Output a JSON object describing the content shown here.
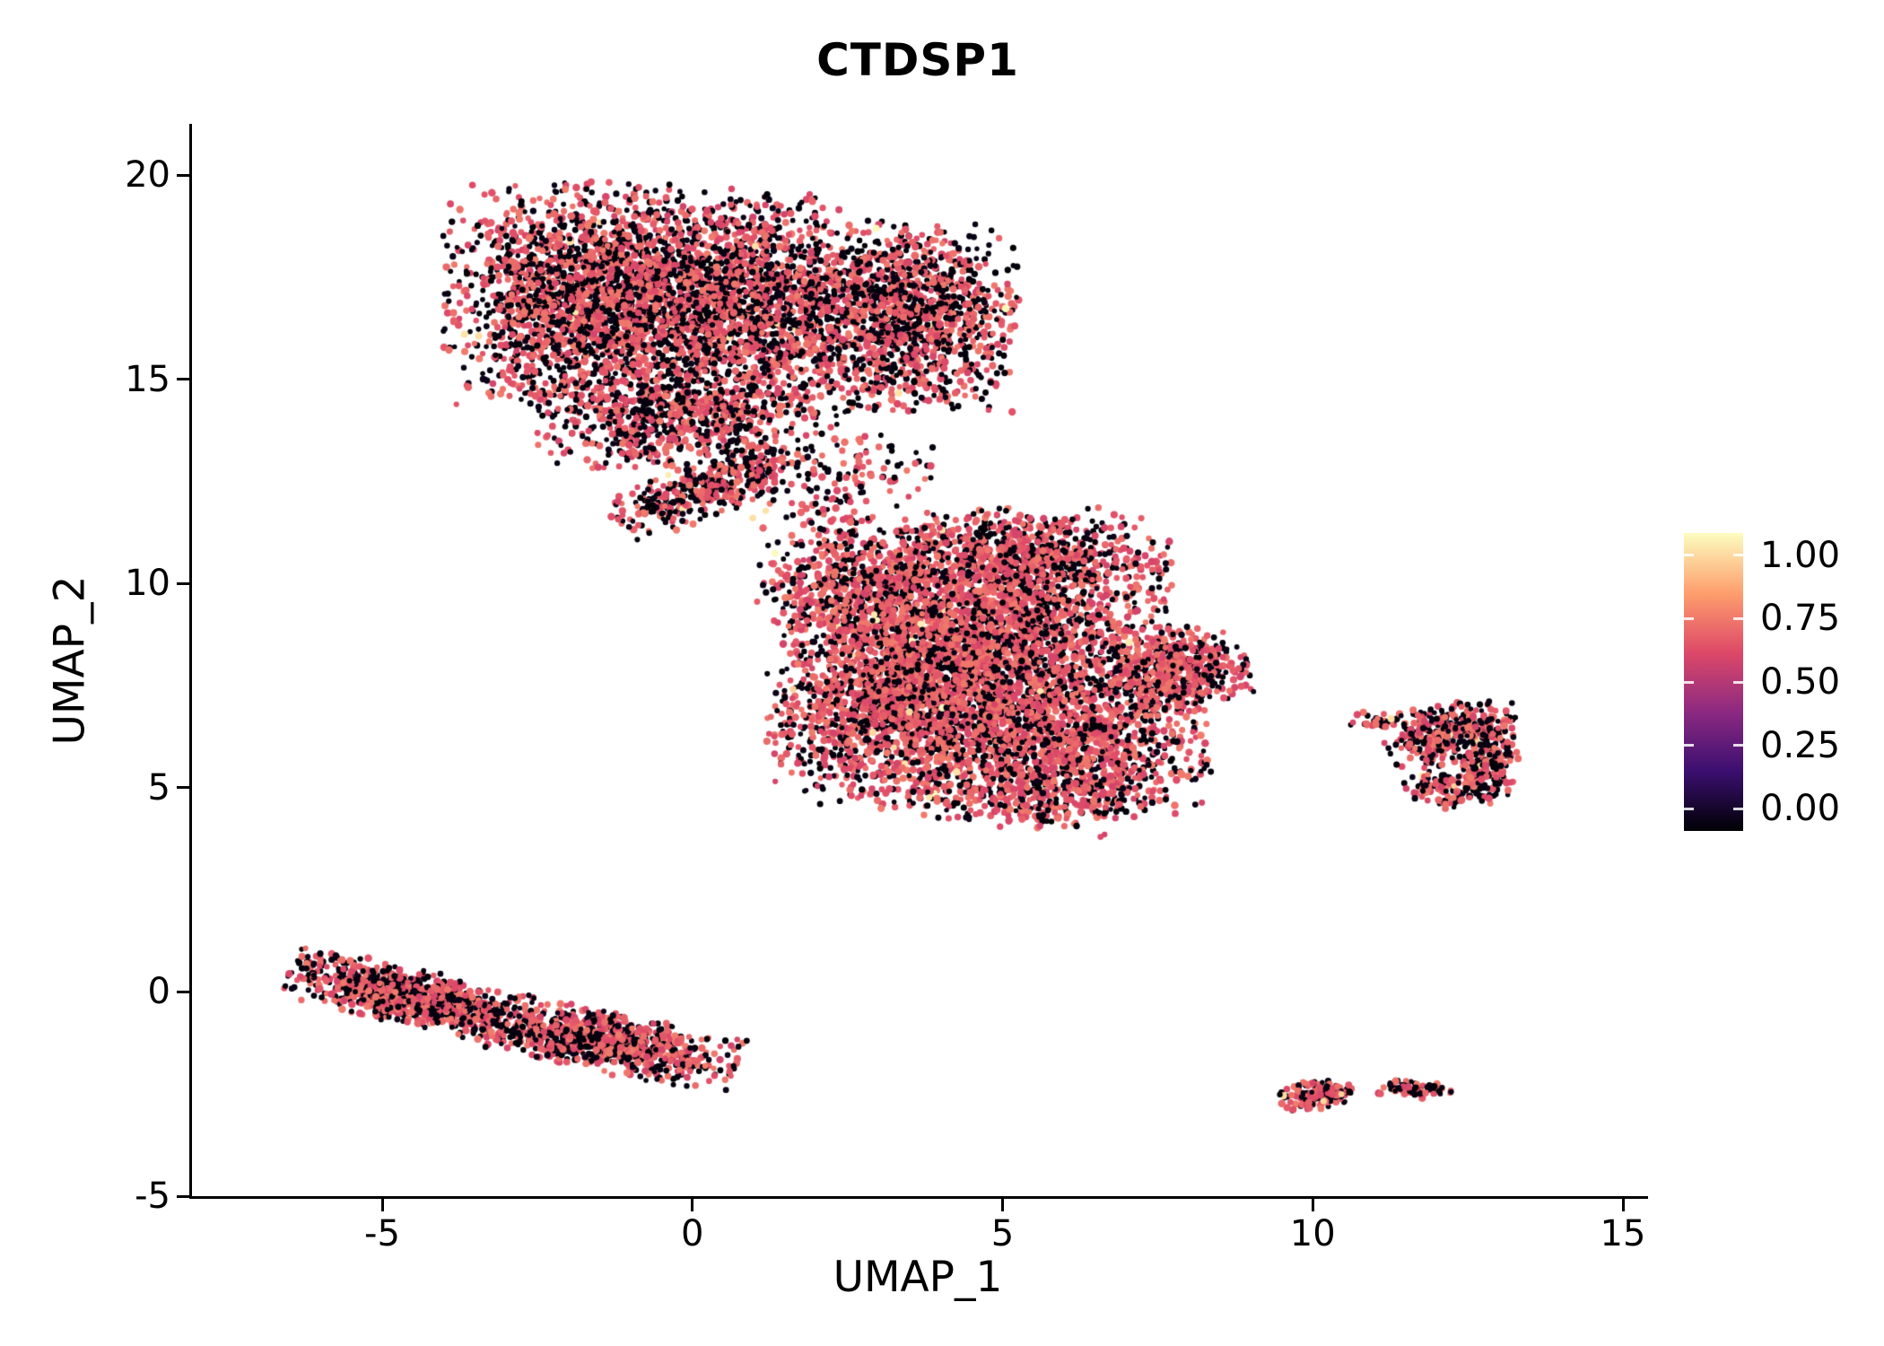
{
  "title": "CTDSP1",
  "axes": {
    "x": {
      "label": "UMAP_1",
      "ticks": [
        -5,
        0,
        5,
        10,
        15
      ],
      "tick_labels": [
        "-5",
        "0",
        "5",
        "10",
        "15"
      ]
    },
    "y": {
      "label": "UMAP_2",
      "ticks": [
        -5,
        0,
        5,
        10,
        15,
        20
      ],
      "tick_labels": [
        "-5",
        "0",
        "5",
        "10",
        "15",
        "20"
      ]
    }
  },
  "colorbar": {
    "tick_labels": [
      "1.00",
      "0.75",
      "0.50",
      "0.25",
      "0.00"
    ],
    "tick_values": [
      1.0,
      0.75,
      0.5,
      0.25,
      0.0
    ]
  },
  "colors": {
    "background": "#FFFFFF",
    "axis": "#000000",
    "text": "#000000",
    "colormap_name": "magma",
    "colormap_stops": [
      {
        "t": 0.0,
        "c": "#000004"
      },
      {
        "t": 0.2,
        "c": "#3B0F70"
      },
      {
        "t": 0.4,
        "c": "#8C2981"
      },
      {
        "t": 0.6,
        "c": "#DE4968"
      },
      {
        "t": 0.8,
        "c": "#FE9F6D"
      },
      {
        "t": 1.0,
        "c": "#FCFDBF"
      }
    ]
  },
  "chart_data": {
    "type": "scatter",
    "title": "CTDSP1",
    "xlabel": "UMAP_1",
    "ylabel": "UMAP_2",
    "xlim": [
      -8.1,
      15.4
    ],
    "ylim": [
      -5,
      21.2
    ],
    "grid": false,
    "legend_position": "right",
    "color_scale": {
      "limits": [
        0,
        1
      ],
      "palette": "magma",
      "description": "CTDSP1 expression per cell: 0 = black, ~0.6 = pink-red (most expressing cells), ~1 = pale yellow (rare)"
    },
    "point_value_mix": {
      "zero_black": "roughly 40-50% of cells, value 0-0.04",
      "mid_pink": "roughly 50-60% of cells, value 0.57-0.72",
      "high_yellow": "under 1% of cells, value 0.9-1.0"
    },
    "seed": 42,
    "clusters": [
      {
        "name": "upper-left-large",
        "pink_frac": 0.52,
        "yellow_frac": 0.006,
        "blobs": [
          {
            "cx": -1.6,
            "cy": 17.0,
            "sx": 1.15,
            "sy": 1.35,
            "rot": 0,
            "n": 2300
          },
          {
            "cx": 1.0,
            "cy": 16.8,
            "sx": 1.0,
            "sy": 1.3,
            "rot": 0,
            "n": 1700
          },
          {
            "cx": 3.5,
            "cy": 16.5,
            "sx": 0.85,
            "sy": 1.1,
            "rot": 0,
            "n": 1300
          },
          {
            "cx": -0.2,
            "cy": 14.0,
            "sx": 1.1,
            "sy": 0.6,
            "rot": 0,
            "n": 700
          },
          {
            "cx": 0.2,
            "cy": 12.3,
            "sx": 0.8,
            "sy": 0.3,
            "rot": 0.55,
            "n": 400
          },
          {
            "cx": 2.3,
            "cy": 12.5,
            "sx": 0.8,
            "sy": 0.8,
            "rot": 0,
            "n": 170
          }
        ]
      },
      {
        "name": "central-large",
        "pink_frac": 0.62,
        "yellow_frac": 0.006,
        "blobs": [
          {
            "cx": 4.6,
            "cy": 8.8,
            "sx": 1.5,
            "sy": 1.35,
            "rot": 0,
            "n": 2800
          },
          {
            "cx": 3.3,
            "cy": 6.8,
            "sx": 1.0,
            "sy": 1.1,
            "rot": 0,
            "n": 1300
          },
          {
            "cx": 6.1,
            "cy": 6.4,
            "sx": 1.1,
            "sy": 1.0,
            "rot": 0,
            "n": 1200
          },
          {
            "cx": 7.9,
            "cy": 7.9,
            "sx": 0.55,
            "sy": 0.5,
            "rot": 0,
            "n": 450
          },
          {
            "cx": 5.4,
            "cy": 10.7,
            "sx": 1.1,
            "sy": 0.55,
            "rot": 0,
            "n": 550
          },
          {
            "cx": 2.6,
            "cy": 9.9,
            "sx": 0.75,
            "sy": 0.7,
            "rot": 0,
            "n": 400
          },
          {
            "cx": 5.6,
            "cy": 4.9,
            "sx": 1.0,
            "sy": 0.45,
            "rot": 0,
            "n": 350
          }
        ]
      },
      {
        "name": "lower-left-band",
        "pink_frac": 0.55,
        "yellow_frac": 0.004,
        "blobs": [
          {
            "cx": -4.6,
            "cy": -0.1,
            "sx": 0.95,
            "sy": 0.33,
            "rot": -0.32,
            "n": 850
          },
          {
            "cx": -1.5,
            "cy": -1.2,
            "sx": 1.1,
            "sy": 0.35,
            "rot": -0.3,
            "n": 950
          }
        ]
      },
      {
        "name": "right-small",
        "pink_frac": 0.48,
        "yellow_frac": 0.01,
        "blobs": [
          {
            "cx": 12.35,
            "cy": 6.55,
            "sx": 0.45,
            "sy": 0.28,
            "rot": 0,
            "n": 220
          },
          {
            "cx": 12.85,
            "cy": 5.6,
            "sx": 0.22,
            "sy": 0.45,
            "rot": 0,
            "n": 170
          },
          {
            "cx": 11.85,
            "cy": 6.1,
            "sx": 0.35,
            "sy": 0.3,
            "rot": 0,
            "n": 140
          },
          {
            "cx": 12.2,
            "cy": 5.0,
            "sx": 0.35,
            "sy": 0.25,
            "rot": 0,
            "n": 130
          },
          {
            "cx": 11.1,
            "cy": 6.6,
            "sx": 0.25,
            "sy": 0.12,
            "rot": 0,
            "n": 40
          }
        ]
      },
      {
        "name": "bottom-tiny-left",
        "pink_frac": 0.5,
        "yellow_frac": 0.01,
        "blobs": [
          {
            "cx": 10.05,
            "cy": -2.55,
            "sx": 0.28,
            "sy": 0.18,
            "rot": 0,
            "n": 130
          },
          {
            "cx": 10.38,
            "cy": -2.45,
            "sx": 0.12,
            "sy": 0.1,
            "rot": 0,
            "n": 30
          }
        ]
      },
      {
        "name": "bottom-tiny-right",
        "pink_frac": 0.55,
        "yellow_frac": 0.0,
        "blobs": [
          {
            "cx": 11.62,
            "cy": -2.38,
            "sx": 0.3,
            "sy": 0.1,
            "rot": -0.1,
            "n": 90
          }
        ]
      },
      {
        "name": "isolated-points",
        "pink_frac": 0.8,
        "yellow_frac": 0.0,
        "blobs": [
          {
            "cx": 6.6,
            "cy": 3.8,
            "sx": 0.05,
            "sy": 0.05,
            "rot": 0,
            "n": 2
          },
          {
            "cx": 8.95,
            "cy": 8.1,
            "sx": 0.05,
            "sy": 0.05,
            "rot": 0,
            "n": 2
          }
        ]
      }
    ]
  }
}
